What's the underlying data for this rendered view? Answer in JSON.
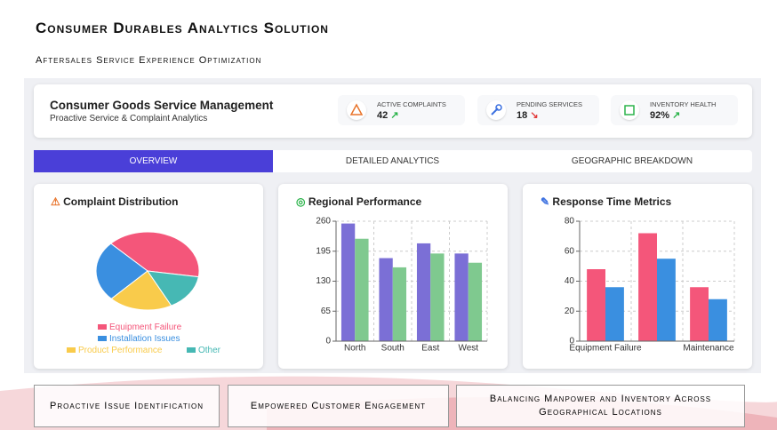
{
  "header": {
    "title": "Consumer Durables Analytics Solution",
    "subtitle": "Aftersales Service Experience Optimization"
  },
  "dashboard": {
    "title": "Consumer Goods Service Management",
    "subtitle": "Proactive Service & Complaint Analytics",
    "metrics": [
      {
        "label": "ACTIVE COMPLAINTS",
        "value": "42"
      },
      {
        "label": "PENDING SERVICES",
        "value": "18"
      },
      {
        "label": "INVENTORY HEALTH",
        "value": "92%"
      }
    ]
  },
  "tabs": [
    "OVERVIEW",
    "DETAILED ANALYTICS",
    "GEOGRAPHIC BREAKDOWN"
  ],
  "charts": [
    {
      "type": "pie",
      "title": "Complaint Distribution",
      "categories": [
        "Equipment Failure",
        "Installation Issues",
        "Product Performance",
        "Other"
      ],
      "values": [
        40,
        25,
        20,
        15
      ],
      "colors": [
        "#f4567a",
        "#3a8fe0",
        "#f9cb4b",
        "#46b8b4"
      ]
    },
    {
      "type": "bar",
      "title": "Regional Performance",
      "categories": [
        "North",
        "South",
        "East",
        "West"
      ],
      "series": [
        {
          "color": "#7b6fd6",
          "values": [
            255,
            180,
            212,
            190
          ]
        },
        {
          "color": "#7fc98f",
          "values": [
            222,
            160,
            190,
            170
          ]
        }
      ],
      "ylim": [
        0,
        260
      ],
      "yticks": [
        0,
        65,
        130,
        195,
        260
      ],
      "grid": true
    },
    {
      "type": "bar",
      "title": "Response Time Metrics",
      "categories": [
        "Equipment Failure",
        null,
        "Maintenance"
      ],
      "series": [
        {
          "color": "#f4567a",
          "values": [
            48,
            72,
            36
          ]
        },
        {
          "color": "#3a8fe0",
          "values": [
            36,
            55,
            28
          ]
        }
      ],
      "ylim": [
        0,
        80
      ],
      "yticks": [
        0,
        20,
        40,
        60,
        80
      ],
      "grid": true
    }
  ],
  "footer": [
    "Proactive Issue Identification",
    "Empowered Customer Engagement",
    "Balancing Manpower and Inventory Across Geographical Locations"
  ]
}
